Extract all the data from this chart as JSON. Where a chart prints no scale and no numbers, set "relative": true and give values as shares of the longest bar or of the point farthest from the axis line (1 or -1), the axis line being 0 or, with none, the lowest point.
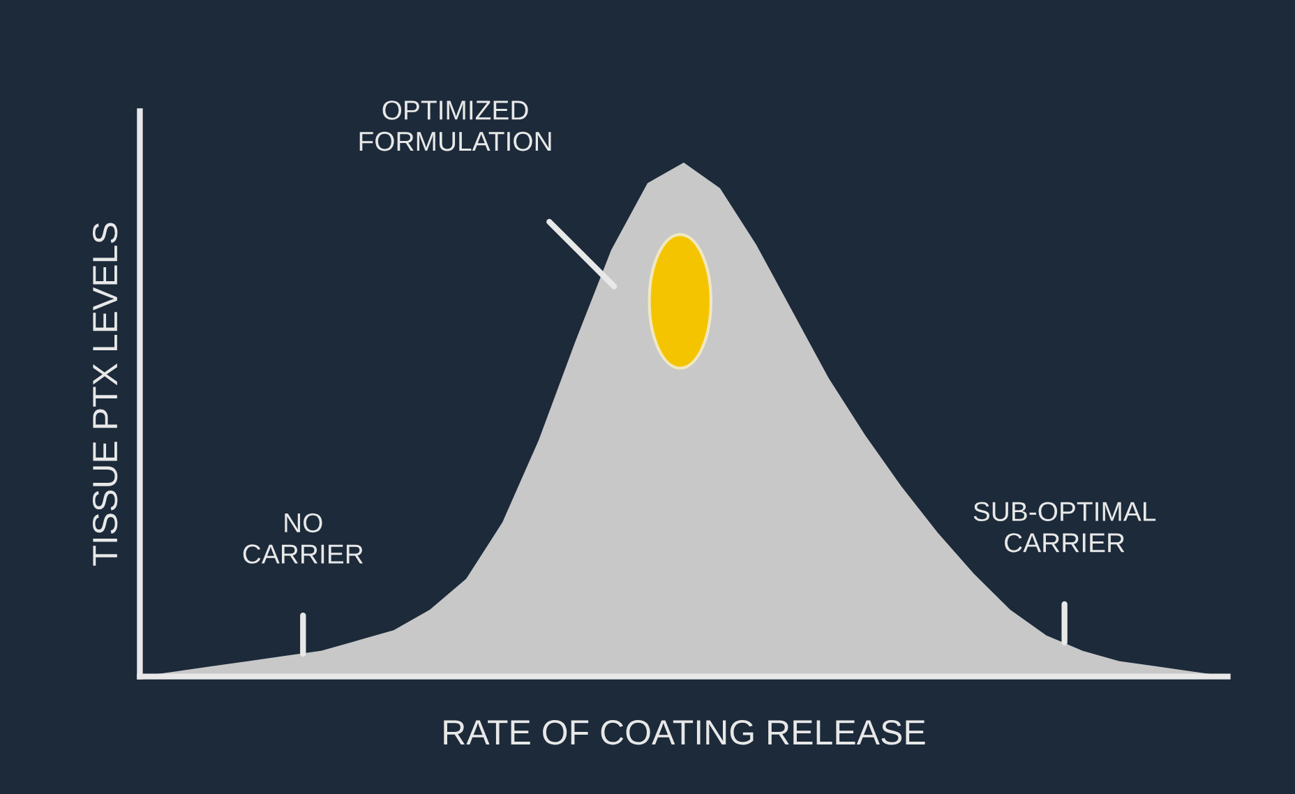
{
  "chart_data": {
    "type": "area",
    "relative": true,
    "xlabel": "RATE OF COATING RELEASE",
    "ylabel": "TISSUE PTX LEVELS",
    "categories": [
      null,
      null,
      null,
      null,
      null,
      null,
      null,
      null,
      null,
      null,
      null,
      null,
      null,
      null,
      null,
      null,
      null,
      null,
      null,
      null,
      null,
      null,
      null,
      null,
      null,
      null,
      null,
      null,
      null,
      null,
      null
    ],
    "series": [
      {
        "color": "#c8c8c8",
        "values": [
          0.0,
          0.01,
          0.02,
          0.03,
          0.04,
          0.05,
          0.07,
          0.09,
          0.13,
          0.19,
          0.3,
          0.46,
          0.65,
          0.83,
          0.96,
          1.0,
          0.95,
          0.84,
          0.71,
          0.58,
          0.47,
          0.37,
          0.28,
          0.2,
          0.13,
          0.08,
          0.05,
          0.03,
          0.02,
          0.01,
          0.0
        ]
      }
    ],
    "annotations": [
      "OPTIMIZED\nFORMULATION",
      "NO\nCARRIER",
      "SUB-OPTIMAL\nCARRIER"
    ],
    "legend": false
  }
}
